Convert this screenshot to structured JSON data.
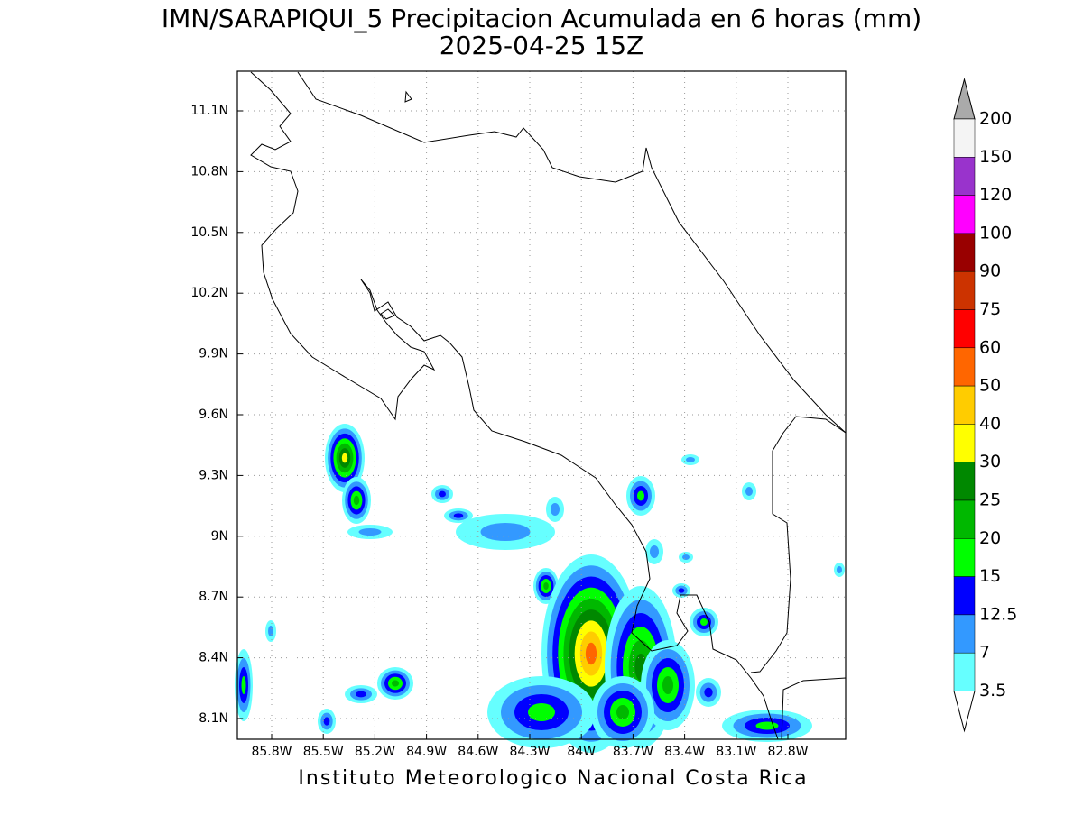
{
  "title": "IMN/SARAPIQUI_5 Precipitacion Acumulada en 6 horas (mm)",
  "subtitle": "2025-04-25 15Z",
  "lat_ticks": [
    "11.1N",
    "10.8N",
    "10.5N",
    "10.2N",
    "9.9N",
    "9.6N",
    "9.3N",
    "9N",
    "8.7N",
    "8.4N",
    "8.1N"
  ],
  "lon_ticks": [
    "85.8W",
    "85.5W",
    "85.2W",
    "84.9W",
    "84.6W",
    "84.3W",
    "84W",
    "83.7W",
    "83.4W",
    "83.1W",
    "82.8W"
  ],
  "colorbar": {
    "levels": [
      200,
      150,
      120,
      100,
      90,
      75,
      60,
      50,
      40,
      30,
      25,
      20,
      15,
      12.5,
      7,
      3.5
    ],
    "colors": [
      "#f4f4f4",
      "#9933cc",
      "#ff00ff",
      "#990000",
      "#cc3300",
      "#ff0000",
      "#ff6600",
      "#ffcc00",
      "#ffff00",
      "#008800",
      "#00b800",
      "#00ff00",
      "#0000ff",
      "#3399ff",
      "#66ffff"
    ],
    "over_color": "#aaaaaa",
    "under_color": "#ffffff"
  },
  "footer": "Instituto Meteorologico Nacional Costa Rica"
}
